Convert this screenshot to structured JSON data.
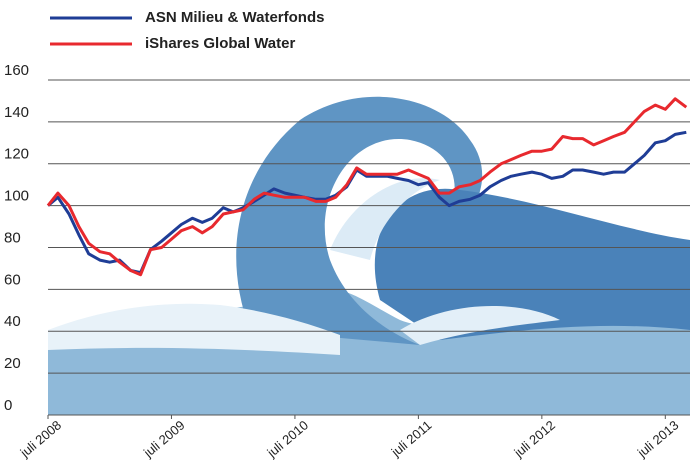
{
  "chart_data": {
    "type": "line",
    "x": [
      2008.5,
      2008.58,
      2008.67,
      2008.75,
      2008.83,
      2008.92,
      2009.0,
      2009.08,
      2009.17,
      2009.25,
      2009.33,
      2009.42,
      2009.5,
      2009.58,
      2009.67,
      2009.75,
      2009.83,
      2009.92,
      2010.0,
      2010.08,
      2010.17,
      2010.25,
      2010.33,
      2010.42,
      2010.5,
      2010.58,
      2010.67,
      2010.75,
      2010.83,
      2010.92,
      2011.0,
      2011.08,
      2011.17,
      2011.25,
      2011.33,
      2011.42,
      2011.5,
      2011.58,
      2011.67,
      2011.75,
      2011.83,
      2011.92,
      2012.0,
      2012.08,
      2012.17,
      2012.25,
      2012.33,
      2012.42,
      2012.5,
      2012.58,
      2012.67,
      2012.75,
      2012.83,
      2012.92,
      2013.0,
      2013.08,
      2013.17,
      2013.25,
      2013.33,
      2013.42,
      2013.5,
      2013.58,
      2013.67
    ],
    "series": [
      {
        "name": "ASN Milieu & Waterfonds",
        "color": "#1f3d96",
        "values": [
          100,
          104,
          96,
          86,
          77,
          74,
          73,
          74,
          69,
          68,
          79,
          83,
          87,
          91,
          94,
          92,
          94,
          99,
          97,
          99,
          102,
          105,
          108,
          106,
          105,
          104,
          103,
          103,
          105,
          109,
          117,
          114,
          114,
          114,
          113,
          112,
          110,
          111,
          104,
          100,
          102,
          103,
          105,
          109,
          112,
          114,
          115,
          116,
          115,
          113,
          114,
          117,
          117,
          116,
          115,
          116,
          116,
          120,
          124,
          130,
          131,
          134,
          135
        ]
      },
      {
        "name": "iShares Global Water",
        "color": "#e8292e",
        "values": [
          100,
          106,
          100,
          90,
          82,
          78,
          77,
          73,
          69,
          67,
          79,
          80,
          84,
          88,
          90,
          87,
          90,
          96,
          97,
          98,
          103,
          106,
          105,
          104,
          104,
          104,
          102,
          102,
          104,
          110,
          118,
          115,
          115,
          115,
          115,
          117,
          115,
          113,
          106,
          106,
          109,
          110,
          112,
          116,
          120,
          122,
          124,
          126,
          126,
          127,
          133,
          132,
          132,
          129,
          131,
          133,
          135,
          140,
          145,
          148,
          146,
          151,
          147
        ]
      }
    ],
    "xlim": [
      2008.5,
      2013.7
    ],
    "xticks": [
      {
        "value": 2008.5,
        "label": "juli 2008"
      },
      {
        "value": 2009.5,
        "label": "juli 2009"
      },
      {
        "value": 2010.5,
        "label": "juli 2010"
      },
      {
        "value": 2011.5,
        "label": "juli 2011"
      },
      {
        "value": 2012.5,
        "label": "juli 2012"
      },
      {
        "value": 2013.5,
        "label": "juli 2013"
      }
    ],
    "ylim": [
      0,
      160
    ],
    "yticks": [
      0,
      20,
      40,
      60,
      80,
      100,
      120,
      140,
      160
    ],
    "grid": true
  }
}
